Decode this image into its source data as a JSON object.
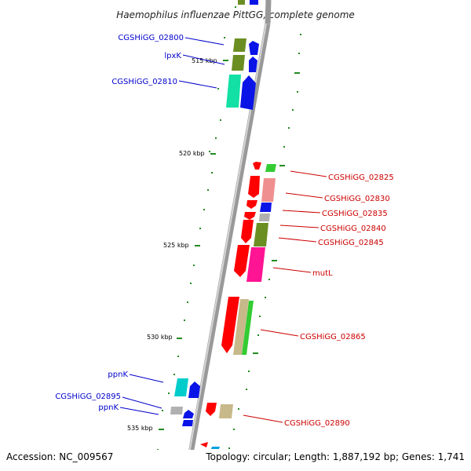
{
  "title": "Haemophilus influenzae PittGG, complete genome",
  "footer": {
    "accession": "Accession: NC_009567",
    "summary": "Topology: circular; Length: 1,887,192 bp; Genes: 1,741"
  },
  "scale_labels": {
    "k515": "515 kbp",
    "k520": "520 kbp",
    "k525": "525 kbp",
    "k530": "530 kbp",
    "k535": "535 kbp"
  },
  "gene_labels": {
    "g02800": "CGSHiGG_02800",
    "lpxk": "lpxK",
    "g02810": "CGSHiGG_02810",
    "g02825": "CGSHiGG_02825",
    "g02830": "CGSHiGG_02830",
    "g02835": "CGSHiGG_02835",
    "g02840": "CGSHiGG_02840",
    "g02845": "CGSHiGG_02845",
    "mutl": "mutL",
    "g02865": "CGSHiGG_02865",
    "ppnk1": "ppnK",
    "g02895": "CGSHiGG_02895",
    "ppnk2": "ppnK",
    "g02890": "CGSHiGG_02890"
  },
  "colors": {
    "forward_label": "#0000cc",
    "reverse_label": "#cc0000",
    "backbone": "#999999",
    "tick": "#228b22",
    "olive": "#6b8e23",
    "blue": "#0a14e6",
    "teal": "#12e0a4",
    "red": "#ff0000",
    "pink": "#ef8f8f",
    "magenta": "#ff1493",
    "tan": "#c8b98a",
    "green": "#33cc33",
    "cyan": "#00cccc"
  }
}
